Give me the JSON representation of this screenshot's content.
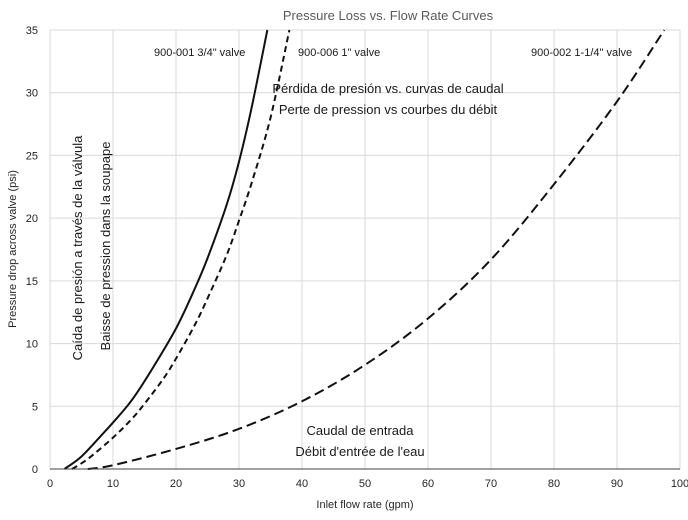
{
  "chart_data": {
    "type": "line",
    "title": "Pressure Loss vs. Flow Rate Curves",
    "xlabel": "Inlet flow rate (gpm)",
    "ylabel": "Pressure drop across valve (psi)",
    "xlim": [
      0,
      100
    ],
    "ylim": [
      0,
      35
    ],
    "x_ticks": [
      "0",
      "10",
      "20",
      "30",
      "40",
      "50",
      "60",
      "70",
      "80",
      "90",
      "100"
    ],
    "y_ticks": [
      "0",
      "5",
      "10",
      "15",
      "20",
      "25",
      "30",
      "35"
    ],
    "grid": true,
    "series": [
      {
        "name": "900-001 3/4\" valve",
        "line_style": "solid",
        "x": [
          2.3,
          5,
          8,
          10,
          13,
          16,
          20,
          23,
          25,
          28,
          30,
          32,
          34.5
        ],
        "y": [
          0,
          1,
          2.6,
          3.7,
          5.5,
          7.8,
          11.2,
          14.4,
          16.8,
          21,
          24.5,
          28.8,
          35
        ]
      },
      {
        "name": "900-006 1\" valve",
        "line_style": "dashed",
        "x": [
          3.5,
          6,
          10,
          13,
          15,
          18,
          20,
          23,
          25,
          28,
          30,
          32,
          35,
          38
        ],
        "y": [
          0,
          0.8,
          2.5,
          4,
          5.2,
          7.2,
          8.8,
          11.5,
          13.6,
          17,
          19.8,
          22.8,
          28,
          35
        ]
      },
      {
        "name": "900-002 1-1/4\" valve",
        "line_style": "dashed",
        "x": [
          6,
          10,
          20,
          30,
          40,
          50,
          60,
          70,
          80,
          90,
          97.5
        ],
        "y": [
          0,
          0.3,
          1.6,
          3.2,
          5.4,
          8.3,
          12,
          16.7,
          22.7,
          29.3,
          35
        ]
      }
    ],
    "annotations": {
      "title_es": "Pérdida de presión vs. curvas de caudal",
      "title_fr": "Perte de pression vs courbes du débit",
      "ylabel_es": "Caída de presión a través de la válvula",
      "ylabel_fr": "Baisse de pression dans la soupape",
      "xlabel_es": "Caudal de entrada",
      "xlabel_fr": "Débit d'entrée de l'eau"
    }
  }
}
